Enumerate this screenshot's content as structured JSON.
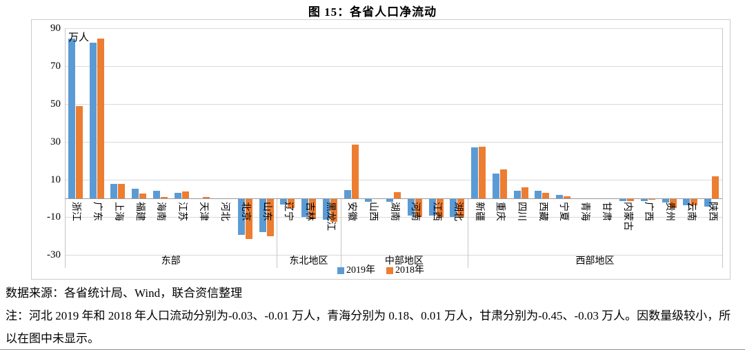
{
  "title": "图 15：各省人口净流动",
  "chart_data": {
    "type": "bar",
    "title": "图 15：各省人口净流动",
    "ylabel": "万人",
    "unit_label": "万人",
    "ylim": [
      -30,
      90
    ],
    "y_ticks": [
      90,
      70,
      50,
      30,
      10,
      -10,
      -30
    ],
    "grid": "horizontal",
    "legend_position": "bottom",
    "categories": [
      "浙江",
      "广东",
      "上海",
      "福建",
      "海南",
      "江苏",
      "天津",
      "河北",
      "北京",
      "山东",
      "辽宁",
      "吉林",
      "黑龙江",
      "安徽",
      "山西",
      "湖南",
      "河南",
      "江西",
      "湖北",
      "新疆",
      "重庆",
      "四川",
      "西藏",
      "宁夏",
      "青海",
      "甘肃",
      "内蒙古",
      "广西",
      "贵州",
      "云南",
      "陕西"
    ],
    "regions": [
      {
        "label": "东部",
        "count": 10
      },
      {
        "label": "东北地区",
        "count": 3
      },
      {
        "label": "中部地区",
        "count": 6
      },
      {
        "label": "西部地区",
        "count": 12
      }
    ],
    "series": [
      {
        "name": "2019年",
        "color": "#5B9BD5",
        "values": [
          84.5,
          82.5,
          7.6,
          5.0,
          4.2,
          2.8,
          0.2,
          -0.03,
          -19.0,
          -17.5,
          -3.0,
          -9.5,
          -11.0,
          4.3,
          -1.3,
          -1.4,
          -8.7,
          -8.7,
          -9.3,
          27.0,
          13.0,
          4.0,
          4.0,
          1.7,
          0.18,
          -0.45,
          -1.2,
          -1.0,
          -1.7,
          -3.4,
          -4.0
        ]
      },
      {
        "name": "2018年",
        "color": "#ED7D31",
        "values": [
          49.0,
          84.5,
          7.8,
          2.5,
          0.8,
          3.5,
          0.9,
          -0.01,
          -21.0,
          -19.5,
          -4.6,
          -10.5,
          -12.0,
          28.5,
          -0.2,
          3.3,
          -9.4,
          -10.0,
          -9.4,
          27.3,
          15.4,
          5.9,
          3.0,
          1.1,
          0.01,
          -0.03,
          -1.2,
          -0.5,
          -4.6,
          -3.4,
          11.5
        ]
      }
    ]
  },
  "notes": {
    "source": "数据来源：各省统计局、Wind，联合资信整理",
    "note": "注：河北 2019 年和 2018 年人口流动分别为-0.03、-0.01 万人，青海分别为 0.18、0.01 万人，甘肃分别为-0.45、-0.03 万人。因数量级较小，所以在图中未显示。"
  }
}
